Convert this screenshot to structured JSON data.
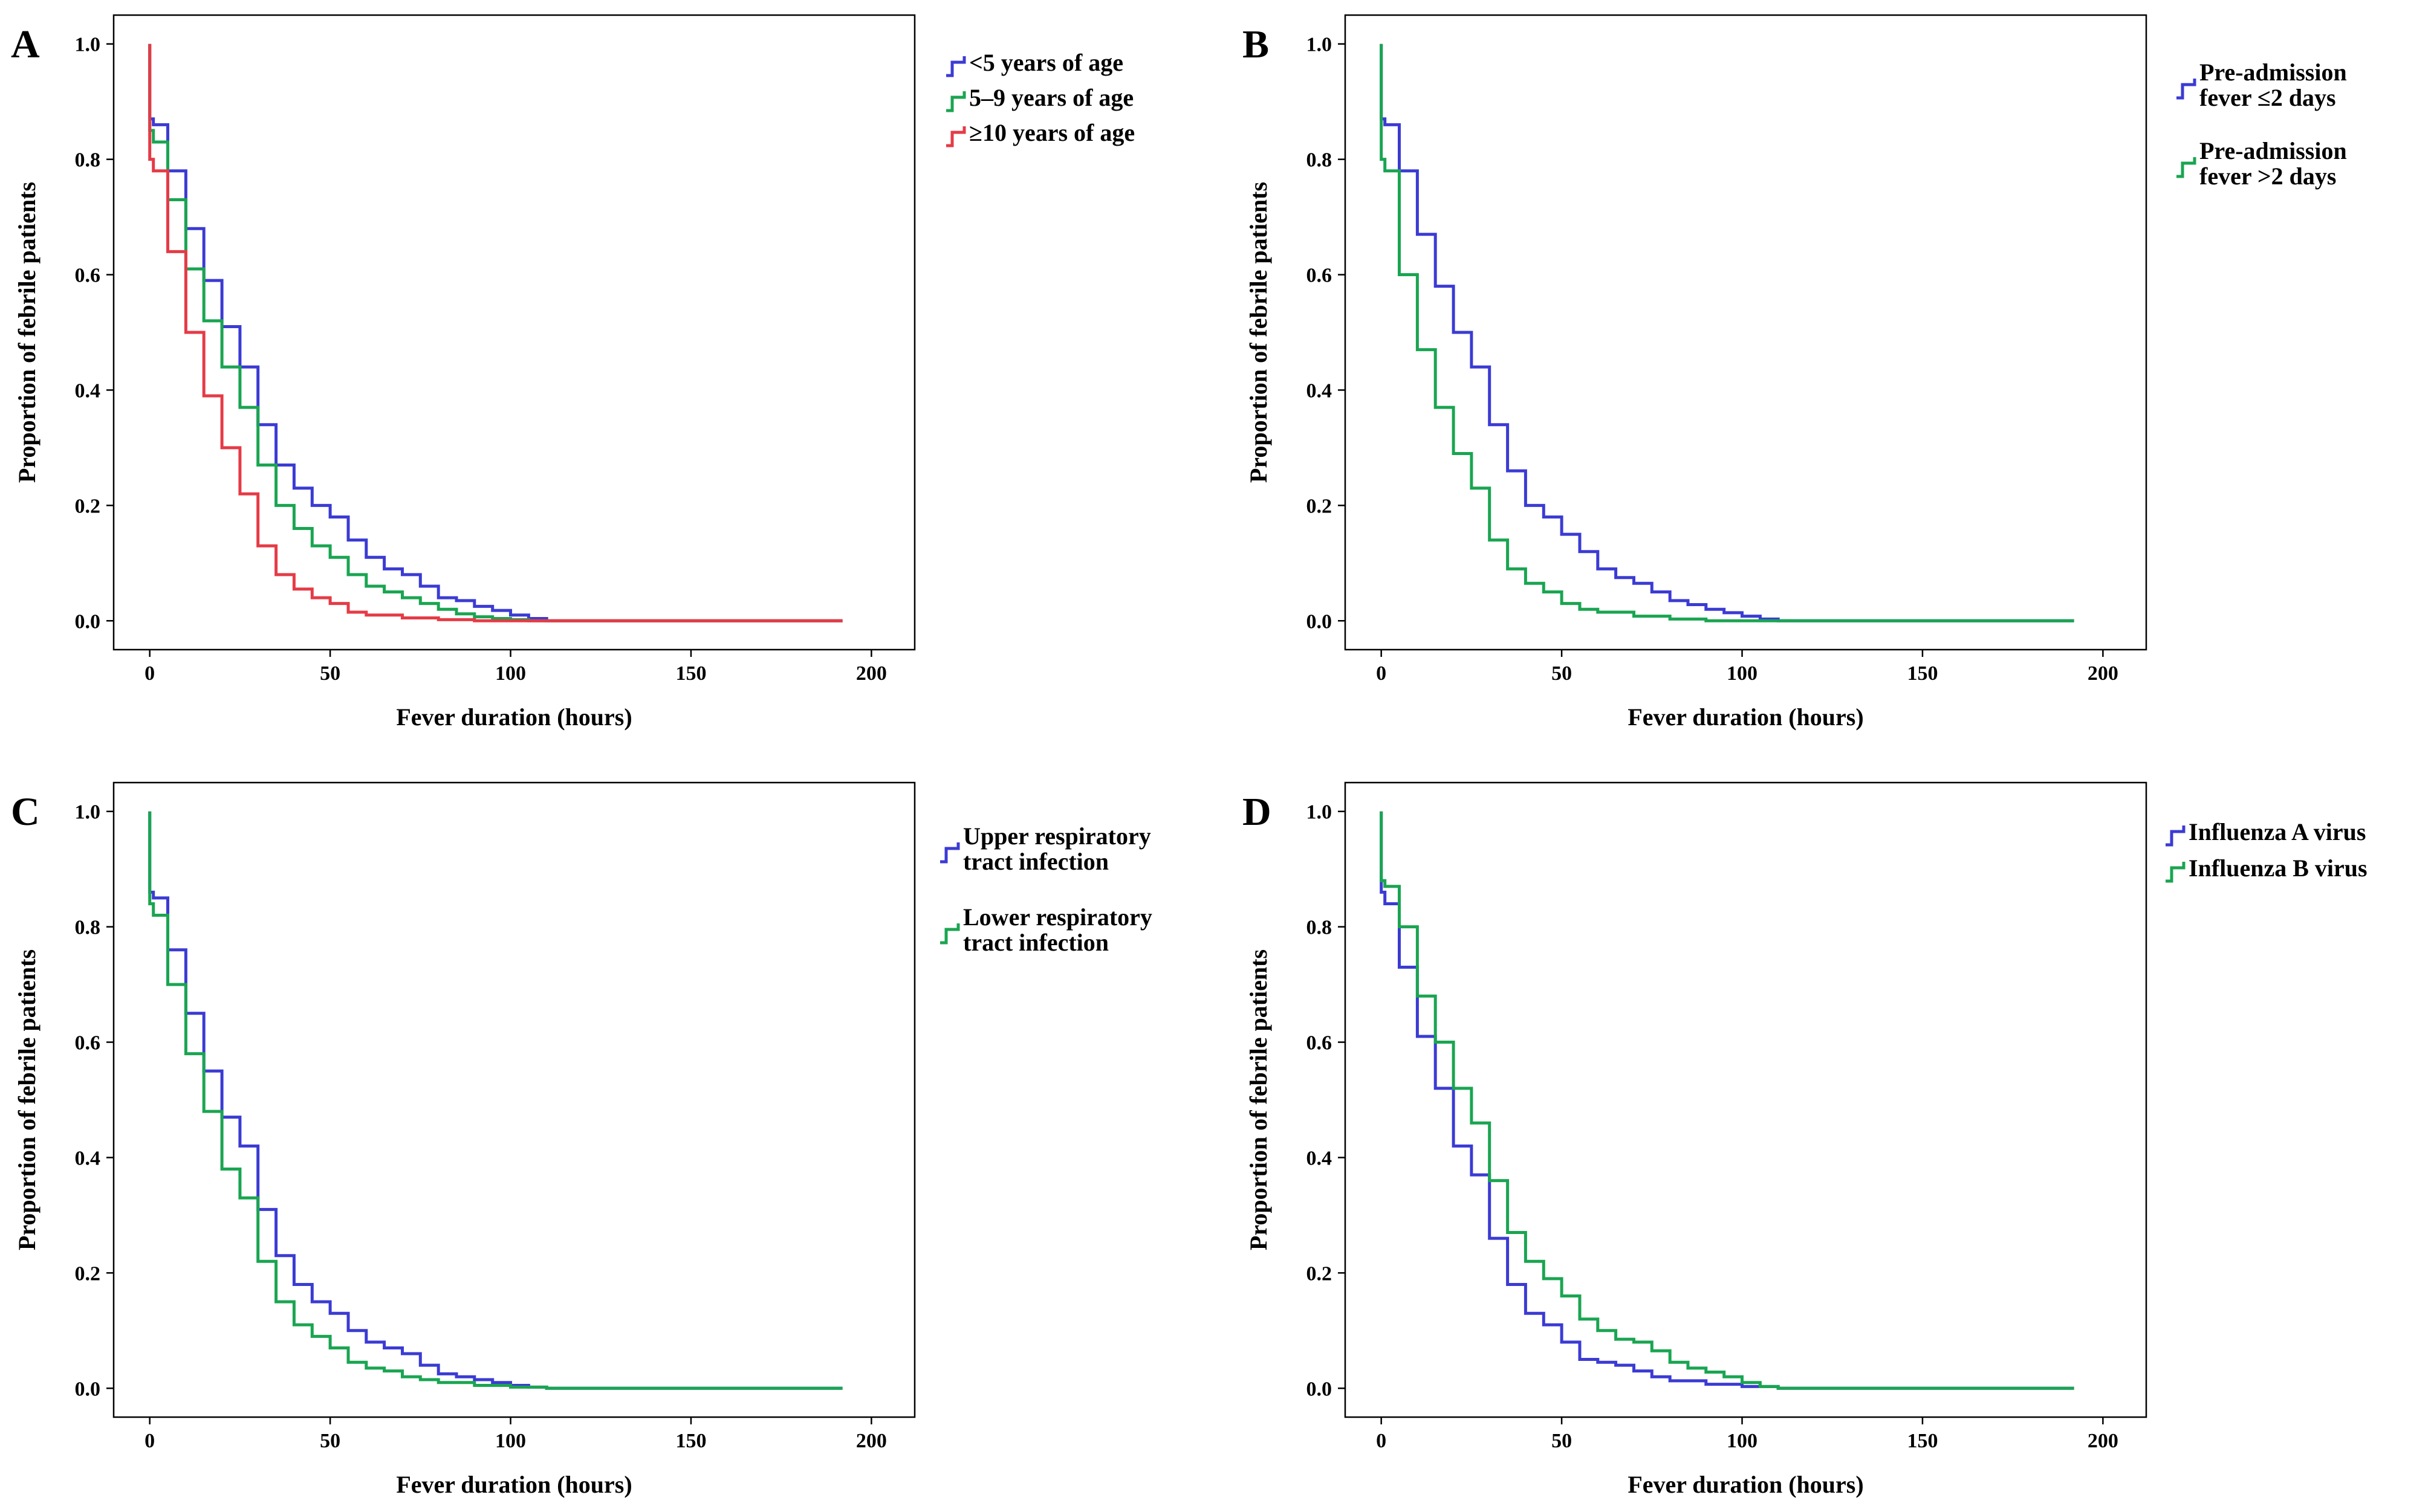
{
  "colors": {
    "blue": "#3b3bd4",
    "green": "#1aa551",
    "red": "#e53b46"
  },
  "chart_data": [
    {
      "panel": "A",
      "type": "line",
      "step": true,
      "xlabel": "Fever duration (hours)",
      "ylabel": "Proportion of febrile patients",
      "xlim": [
        -10,
        212
      ],
      "ylim": [
        -0.05,
        1.05
      ],
      "xticks": [
        0,
        50,
        100,
        150,
        200
      ],
      "yticks": [
        0.0,
        0.2,
        0.4,
        0.6,
        0.8,
        1.0
      ],
      "xtick_labels": [
        "0",
        "50",
        "100",
        "150",
        "200"
      ],
      "ytick_labels": [
        "0.0",
        "0.2",
        "0.4",
        "0.6",
        "0.8",
        "1.0"
      ],
      "series": [
        {
          "name": "<5 years of age",
          "color": "blue",
          "x": [
            0,
            0,
            1,
            5,
            10,
            15,
            20,
            25,
            30,
            35,
            40,
            45,
            50,
            55,
            60,
            65,
            70,
            75,
            80,
            85,
            90,
            95,
            100,
            105,
            110,
            192
          ],
          "y": [
            1.0,
            0.87,
            0.86,
            0.78,
            0.68,
            0.59,
            0.51,
            0.44,
            0.34,
            0.27,
            0.23,
            0.2,
            0.18,
            0.14,
            0.11,
            0.09,
            0.08,
            0.06,
            0.04,
            0.035,
            0.025,
            0.018,
            0.01,
            0.004,
            0.0,
            0.0
          ]
        },
        {
          "name": "5–9 years of age",
          "color": "green",
          "x": [
            0,
            0,
            1,
            5,
            10,
            15,
            20,
            25,
            30,
            35,
            40,
            45,
            50,
            55,
            60,
            65,
            70,
            75,
            80,
            85,
            90,
            95,
            100,
            105,
            192
          ],
          "y": [
            1.0,
            0.85,
            0.83,
            0.73,
            0.61,
            0.52,
            0.44,
            0.37,
            0.27,
            0.2,
            0.16,
            0.13,
            0.11,
            0.08,
            0.06,
            0.05,
            0.04,
            0.03,
            0.02,
            0.012,
            0.007,
            0.004,
            0.002,
            0.0,
            0.0
          ]
        },
        {
          "name": "≥10 years of age",
          "color": "red",
          "x": [
            0,
            0,
            1,
            5,
            10,
            15,
            20,
            25,
            30,
            35,
            40,
            45,
            50,
            55,
            60,
            70,
            80,
            90,
            192
          ],
          "y": [
            1.0,
            0.8,
            0.78,
            0.64,
            0.5,
            0.39,
            0.3,
            0.22,
            0.13,
            0.08,
            0.055,
            0.04,
            0.03,
            0.015,
            0.01,
            0.005,
            0.002,
            0.0,
            0.0
          ]
        }
      ],
      "legend": {
        "entries": [
          [
            "<5 years of age"
          ],
          [
            "5–9 years of age"
          ],
          [
            "≥10 years of age"
          ]
        ],
        "position": "outside-right"
      }
    },
    {
      "panel": "B",
      "type": "line",
      "step": true,
      "xlabel": "Fever duration (hours)",
      "ylabel": "Proportion of febrile patients",
      "xlim": [
        -10,
        212
      ],
      "ylim": [
        -0.05,
        1.05
      ],
      "xticks": [
        0,
        50,
        100,
        150,
        200
      ],
      "yticks": [
        0.0,
        0.2,
        0.4,
        0.6,
        0.8,
        1.0
      ],
      "xtick_labels": [
        "0",
        "50",
        "100",
        "150",
        "200"
      ],
      "ytick_labels": [
        "0.0",
        "0.2",
        "0.4",
        "0.6",
        "0.8",
        "1.0"
      ],
      "series": [
        {
          "name": "Pre-admission fever ≤2 days",
          "color": "blue",
          "x": [
            0,
            0,
            1,
            5,
            10,
            15,
            20,
            25,
            30,
            35,
            40,
            45,
            50,
            55,
            60,
            65,
            70,
            75,
            80,
            85,
            90,
            95,
            100,
            105,
            110,
            192
          ],
          "y": [
            1.0,
            0.87,
            0.86,
            0.78,
            0.67,
            0.58,
            0.5,
            0.44,
            0.34,
            0.26,
            0.2,
            0.18,
            0.15,
            0.12,
            0.09,
            0.075,
            0.065,
            0.05,
            0.035,
            0.028,
            0.02,
            0.014,
            0.008,
            0.003,
            0.0,
            0.0
          ]
        },
        {
          "name": "Pre-admission fever >2 days",
          "color": "green",
          "x": [
            0,
            0,
            1,
            5,
            10,
            15,
            20,
            25,
            30,
            35,
            40,
            45,
            50,
            55,
            60,
            70,
            80,
            90,
            192
          ],
          "y": [
            1.0,
            0.8,
            0.78,
            0.6,
            0.47,
            0.37,
            0.29,
            0.23,
            0.14,
            0.09,
            0.065,
            0.05,
            0.03,
            0.02,
            0.015,
            0.008,
            0.003,
            0.0,
            0.0
          ]
        }
      ],
      "legend": {
        "entries": [
          [
            "Pre-admission",
            "fever ≤2 days"
          ],
          [
            "Pre-admission",
            "fever >2 days"
          ]
        ],
        "position": "outside-right"
      }
    },
    {
      "panel": "C",
      "type": "line",
      "step": true,
      "xlabel": "Fever duration (hours)",
      "ylabel": "Proportion of febrile patients",
      "xlim": [
        -10,
        212
      ],
      "ylim": [
        -0.05,
        1.05
      ],
      "xticks": [
        0,
        50,
        100,
        150,
        200
      ],
      "yticks": [
        0.0,
        0.2,
        0.4,
        0.6,
        0.8,
        1.0
      ],
      "xtick_labels": [
        "0",
        "50",
        "100",
        "150",
        "200"
      ],
      "ytick_labels": [
        "0.0",
        "0.2",
        "0.4",
        "0.6",
        "0.8",
        "1.0"
      ],
      "series": [
        {
          "name": "Upper respiratory tract infection",
          "color": "blue",
          "x": [
            0,
            0,
            1,
            5,
            10,
            15,
            20,
            25,
            30,
            35,
            40,
            45,
            50,
            55,
            60,
            65,
            70,
            75,
            80,
            85,
            90,
            95,
            100,
            105,
            110,
            192
          ],
          "y": [
            1.0,
            0.86,
            0.85,
            0.76,
            0.65,
            0.55,
            0.47,
            0.42,
            0.31,
            0.23,
            0.18,
            0.15,
            0.13,
            0.1,
            0.08,
            0.07,
            0.06,
            0.04,
            0.025,
            0.02,
            0.015,
            0.01,
            0.005,
            0.002,
            0.0,
            0.0
          ]
        },
        {
          "name": "Lower respiratory tract infection",
          "color": "green",
          "x": [
            0,
            0,
            1,
            5,
            10,
            15,
            20,
            25,
            30,
            35,
            40,
            45,
            50,
            55,
            60,
            65,
            70,
            75,
            80,
            90,
            100,
            110,
            192
          ],
          "y": [
            1.0,
            0.84,
            0.82,
            0.7,
            0.58,
            0.48,
            0.38,
            0.33,
            0.22,
            0.15,
            0.11,
            0.09,
            0.07,
            0.045,
            0.035,
            0.03,
            0.02,
            0.015,
            0.01,
            0.005,
            0.002,
            0.0,
            0.0
          ]
        }
      ],
      "legend": {
        "entries": [
          [
            "Upper respiratory",
            "tract infection"
          ],
          [
            "Lower respiratory",
            "tract infection"
          ]
        ],
        "position": "outside-right"
      }
    },
    {
      "panel": "D",
      "type": "line",
      "step": true,
      "xlabel": "Fever duration (hours)",
      "ylabel": "Proportion of febrile patients",
      "xlim": [
        -10,
        212
      ],
      "ylim": [
        -0.05,
        1.05
      ],
      "xticks": [
        0,
        50,
        100,
        150,
        200
      ],
      "yticks": [
        0.0,
        0.2,
        0.4,
        0.6,
        0.8,
        1.0
      ],
      "xtick_labels": [
        "0",
        "50",
        "100",
        "150",
        "200"
      ],
      "ytick_labels": [
        "0.0",
        "0.2",
        "0.4",
        "0.6",
        "0.8",
        "1.0"
      ],
      "series": [
        {
          "name": "Influenza A virus",
          "color": "blue",
          "x": [
            0,
            0,
            1,
            5,
            10,
            15,
            20,
            25,
            30,
            35,
            40,
            45,
            50,
            55,
            60,
            65,
            70,
            75,
            80,
            90,
            100,
            110,
            192
          ],
          "y": [
            1.0,
            0.86,
            0.84,
            0.73,
            0.61,
            0.52,
            0.42,
            0.37,
            0.26,
            0.18,
            0.13,
            0.11,
            0.08,
            0.05,
            0.045,
            0.04,
            0.03,
            0.02,
            0.013,
            0.007,
            0.003,
            0.0,
            0.0
          ]
        },
        {
          "name": "Influenza B virus",
          "color": "green",
          "x": [
            0,
            0,
            1,
            5,
            10,
            15,
            20,
            25,
            30,
            35,
            40,
            45,
            50,
            55,
            60,
            65,
            70,
            75,
            80,
            85,
            90,
            95,
            100,
            105,
            110,
            192
          ],
          "y": [
            1.0,
            0.88,
            0.87,
            0.8,
            0.68,
            0.6,
            0.52,
            0.46,
            0.36,
            0.27,
            0.22,
            0.19,
            0.16,
            0.12,
            0.1,
            0.085,
            0.08,
            0.065,
            0.045,
            0.035,
            0.028,
            0.02,
            0.01,
            0.003,
            0.0,
            0.0
          ]
        }
      ],
      "legend": {
        "entries": [
          [
            "Influenza A virus"
          ],
          [
            "Influenza B virus"
          ]
        ],
        "position": "outside-right"
      }
    }
  ]
}
